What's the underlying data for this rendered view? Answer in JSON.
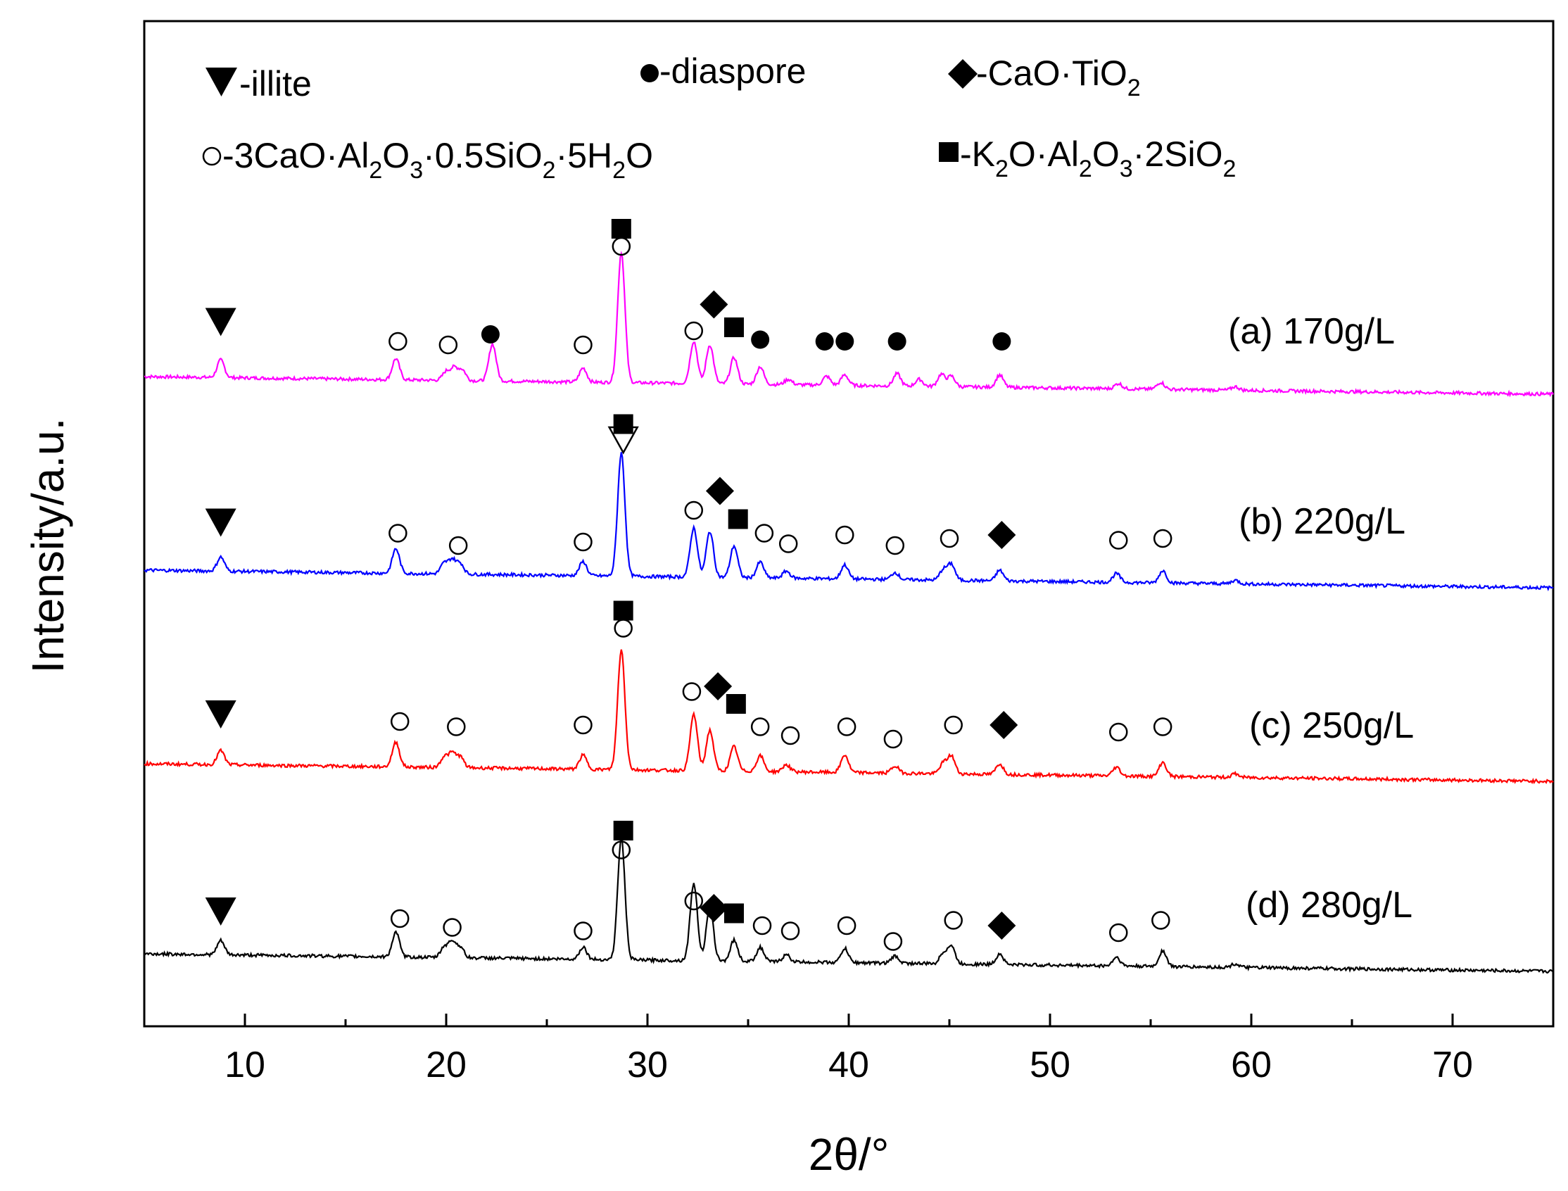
{
  "chart_data": {
    "type": "line",
    "title": "",
    "xlabel": "2θ/°",
    "ylabel": "Intensity/a.u.",
    "xlim": [
      5,
      75
    ],
    "x_ticks": [
      "10",
      "20",
      "30",
      "40",
      "50",
      "60",
      "70"
    ],
    "y_ticks": [],
    "grid": false,
    "legend": {
      "placement": "top-left",
      "row1": {
        "illite": "-illite",
        "diaspore": "-diaspore",
        "catio": {
          "pre": "-CaO·TiO",
          "sub": "2"
        }
      },
      "row2": {
        "hydrogarnet": {
          "a": "-3CaO·Al",
          "s1": "2",
          "b": "O",
          "s2": "3",
          "c": "·0.5SiO",
          "s3": "2",
          "d": "·5H",
          "s4": "2",
          "e": "O"
        },
        "kalsilite": {
          "a": "-K",
          "s1": "2",
          "b": "O·Al",
          "s2": "2",
          "c": "O",
          "s3": "3",
          "d": "·2SiO",
          "s4": "2"
        }
      }
    },
    "series": [
      {
        "name": "(a) 170g/L",
        "color": "#ff00ff",
        "baseline_start": 1.0,
        "baseline_end": 0.0,
        "peaks": [
          [
            8.8,
            1.0
          ],
          [
            17.5,
            1.2
          ],
          [
            20.0,
            0.5
          ],
          [
            20.4,
            0.7
          ],
          [
            20.8,
            0.6
          ],
          [
            22.3,
            2.1
          ],
          [
            26.8,
            0.8
          ],
          [
            28.7,
            7.4
          ],
          [
            32.3,
            2.4
          ],
          [
            33.1,
            2.2
          ],
          [
            34.3,
            1.5
          ],
          [
            35.6,
            1.0
          ],
          [
            37.0,
            0.3
          ],
          [
            38.9,
            0.5
          ],
          [
            39.8,
            0.6
          ],
          [
            42.4,
            0.7
          ],
          [
            43.5,
            0.4
          ],
          [
            44.6,
            0.7
          ],
          [
            45.1,
            0.6
          ],
          [
            47.5,
            0.7
          ],
          [
            53.4,
            0.3
          ],
          [
            55.5,
            0.4
          ],
          [
            59.2,
            0.2
          ]
        ],
        "markers": [
          [
            "tri",
            8.8,
            4.1
          ],
          [
            "circ",
            17.6,
            3.0
          ],
          [
            "circ",
            20.1,
            2.8
          ],
          [
            "dot",
            22.2,
            3.4
          ],
          [
            "circ",
            26.8,
            2.8
          ],
          [
            "circ",
            28.7,
            8.4
          ],
          [
            "sq",
            28.7,
            9.4
          ],
          [
            "circ",
            32.3,
            3.6
          ],
          [
            "dia",
            33.3,
            5.1
          ],
          [
            "sq",
            34.3,
            3.8
          ],
          [
            "dot",
            35.6,
            3.1
          ],
          [
            "dot",
            38.8,
            3.0
          ],
          [
            "dot",
            39.8,
            3.0
          ],
          [
            "dot",
            42.4,
            3.0
          ],
          [
            "dot",
            47.6,
            3.0
          ]
        ]
      },
      {
        "name": "(b) 220g/L",
        "color": "#0000ff",
        "baseline_start": 1.0,
        "baseline_end": 0.0,
        "peaks": [
          [
            8.8,
            0.8
          ],
          [
            17.5,
            1.4
          ],
          [
            19.9,
            0.6
          ],
          [
            20.3,
            0.8
          ],
          [
            20.7,
            0.6
          ],
          [
            26.8,
            0.8
          ],
          [
            28.7,
            7.0
          ],
          [
            32.3,
            2.8
          ],
          [
            33.1,
            2.6
          ],
          [
            34.3,
            1.8
          ],
          [
            35.6,
            0.9
          ],
          [
            36.9,
            0.4
          ],
          [
            39.8,
            0.8
          ],
          [
            42.3,
            0.4
          ],
          [
            44.7,
            0.6
          ],
          [
            45.1,
            0.9
          ],
          [
            47.5,
            0.6
          ],
          [
            53.3,
            0.5
          ],
          [
            55.6,
            0.7
          ],
          [
            59.2,
            0.2
          ]
        ],
        "markers": [
          [
            "tri",
            8.8,
            3.7
          ],
          [
            "circ",
            17.6,
            3.1
          ],
          [
            "circ",
            20.6,
            2.4
          ],
          [
            "circ",
            26.8,
            2.6
          ],
          [
            "tri_open",
            28.8,
            8.4
          ],
          [
            "sq",
            28.8,
            9.3
          ],
          [
            "circ",
            32.3,
            4.4
          ],
          [
            "dia",
            33.6,
            5.5
          ],
          [
            "sq",
            34.5,
            3.9
          ],
          [
            "circ",
            35.8,
            3.1
          ],
          [
            "circ",
            37.0,
            2.5
          ],
          [
            "circ",
            39.8,
            3.0
          ],
          [
            "circ",
            42.3,
            2.4
          ],
          [
            "circ",
            45.0,
            2.8
          ],
          [
            "dia",
            47.6,
            3.0
          ],
          [
            "circ",
            53.4,
            2.7
          ],
          [
            "circ",
            55.6,
            2.8
          ]
        ]
      },
      {
        "name": "(c) 250g/L",
        "color": "#ff0000",
        "baseline_start": 1.0,
        "baseline_end": 0.0,
        "peaks": [
          [
            8.8,
            0.8
          ],
          [
            17.5,
            1.4
          ],
          [
            19.9,
            0.6
          ],
          [
            20.3,
            0.8
          ],
          [
            20.7,
            0.6
          ],
          [
            26.8,
            0.8
          ],
          [
            28.7,
            6.8
          ],
          [
            32.3,
            3.2
          ],
          [
            33.1,
            2.3
          ],
          [
            34.3,
            1.4
          ],
          [
            35.6,
            0.9
          ],
          [
            36.9,
            0.4
          ],
          [
            39.8,
            1.0
          ],
          [
            42.3,
            0.4
          ],
          [
            44.7,
            0.6
          ],
          [
            45.1,
            1.0
          ],
          [
            47.5,
            0.6
          ],
          [
            53.3,
            0.5
          ],
          [
            55.6,
            0.8
          ],
          [
            59.2,
            0.2
          ]
        ],
        "markers": [
          [
            "tri",
            8.8,
            3.8
          ],
          [
            "circ",
            17.7,
            3.4
          ],
          [
            "circ",
            20.5,
            3.1
          ],
          [
            "circ",
            26.8,
            3.2
          ],
          [
            "circ",
            28.8,
            8.7
          ],
          [
            "sq",
            28.8,
            9.7
          ],
          [
            "circ",
            32.2,
            5.1
          ],
          [
            "dia",
            33.5,
            5.4
          ],
          [
            "sq",
            34.4,
            4.4
          ],
          [
            "circ",
            35.6,
            3.1
          ],
          [
            "circ",
            37.1,
            2.6
          ],
          [
            "circ",
            39.9,
            3.1
          ],
          [
            "circ",
            42.2,
            2.4
          ],
          [
            "circ",
            45.2,
            3.2
          ],
          [
            "dia",
            47.7,
            3.2
          ],
          [
            "circ",
            53.4,
            2.8
          ],
          [
            "circ",
            55.6,
            3.1
          ]
        ]
      },
      {
        "name": "(d) 280g/L",
        "color": "#000000",
        "baseline_start": 1.0,
        "baseline_end": 0.0,
        "peaks": [
          [
            8.8,
            0.8
          ],
          [
            17.5,
            1.4
          ],
          [
            19.9,
            0.6
          ],
          [
            20.3,
            0.9
          ],
          [
            20.7,
            0.6
          ],
          [
            26.8,
            0.7
          ],
          [
            28.7,
            6.9
          ],
          [
            32.3,
            4.4
          ],
          [
            33.1,
            3.0
          ],
          [
            34.3,
            1.2
          ],
          [
            35.6,
            0.8
          ],
          [
            36.9,
            0.4
          ],
          [
            39.8,
            0.8
          ],
          [
            42.3,
            0.4
          ],
          [
            44.7,
            0.6
          ],
          [
            45.1,
            1.0
          ],
          [
            47.5,
            0.6
          ],
          [
            53.3,
            0.5
          ],
          [
            55.6,
            0.9
          ],
          [
            59.2,
            0.2
          ]
        ],
        "markers": [
          [
            "tri",
            8.8,
            3.4
          ],
          [
            "circ",
            17.7,
            3.0
          ],
          [
            "circ",
            20.3,
            2.5
          ],
          [
            "circ",
            26.8,
            2.3
          ],
          [
            "circ",
            28.7,
            6.9
          ],
          [
            "sq",
            28.8,
            8.0
          ],
          [
            "circ",
            32.3,
            4.0
          ],
          [
            "dia",
            33.3,
            3.6
          ],
          [
            "sq",
            34.3,
            3.3
          ],
          [
            "circ",
            35.7,
            2.6
          ],
          [
            "circ",
            37.1,
            2.3
          ],
          [
            "circ",
            39.9,
            2.6
          ],
          [
            "circ",
            42.2,
            1.7
          ],
          [
            "circ",
            45.2,
            2.9
          ],
          [
            "dia",
            47.6,
            2.6
          ],
          [
            "circ",
            53.4,
            2.2
          ],
          [
            "circ",
            55.5,
            2.9
          ]
        ]
      }
    ]
  }
}
